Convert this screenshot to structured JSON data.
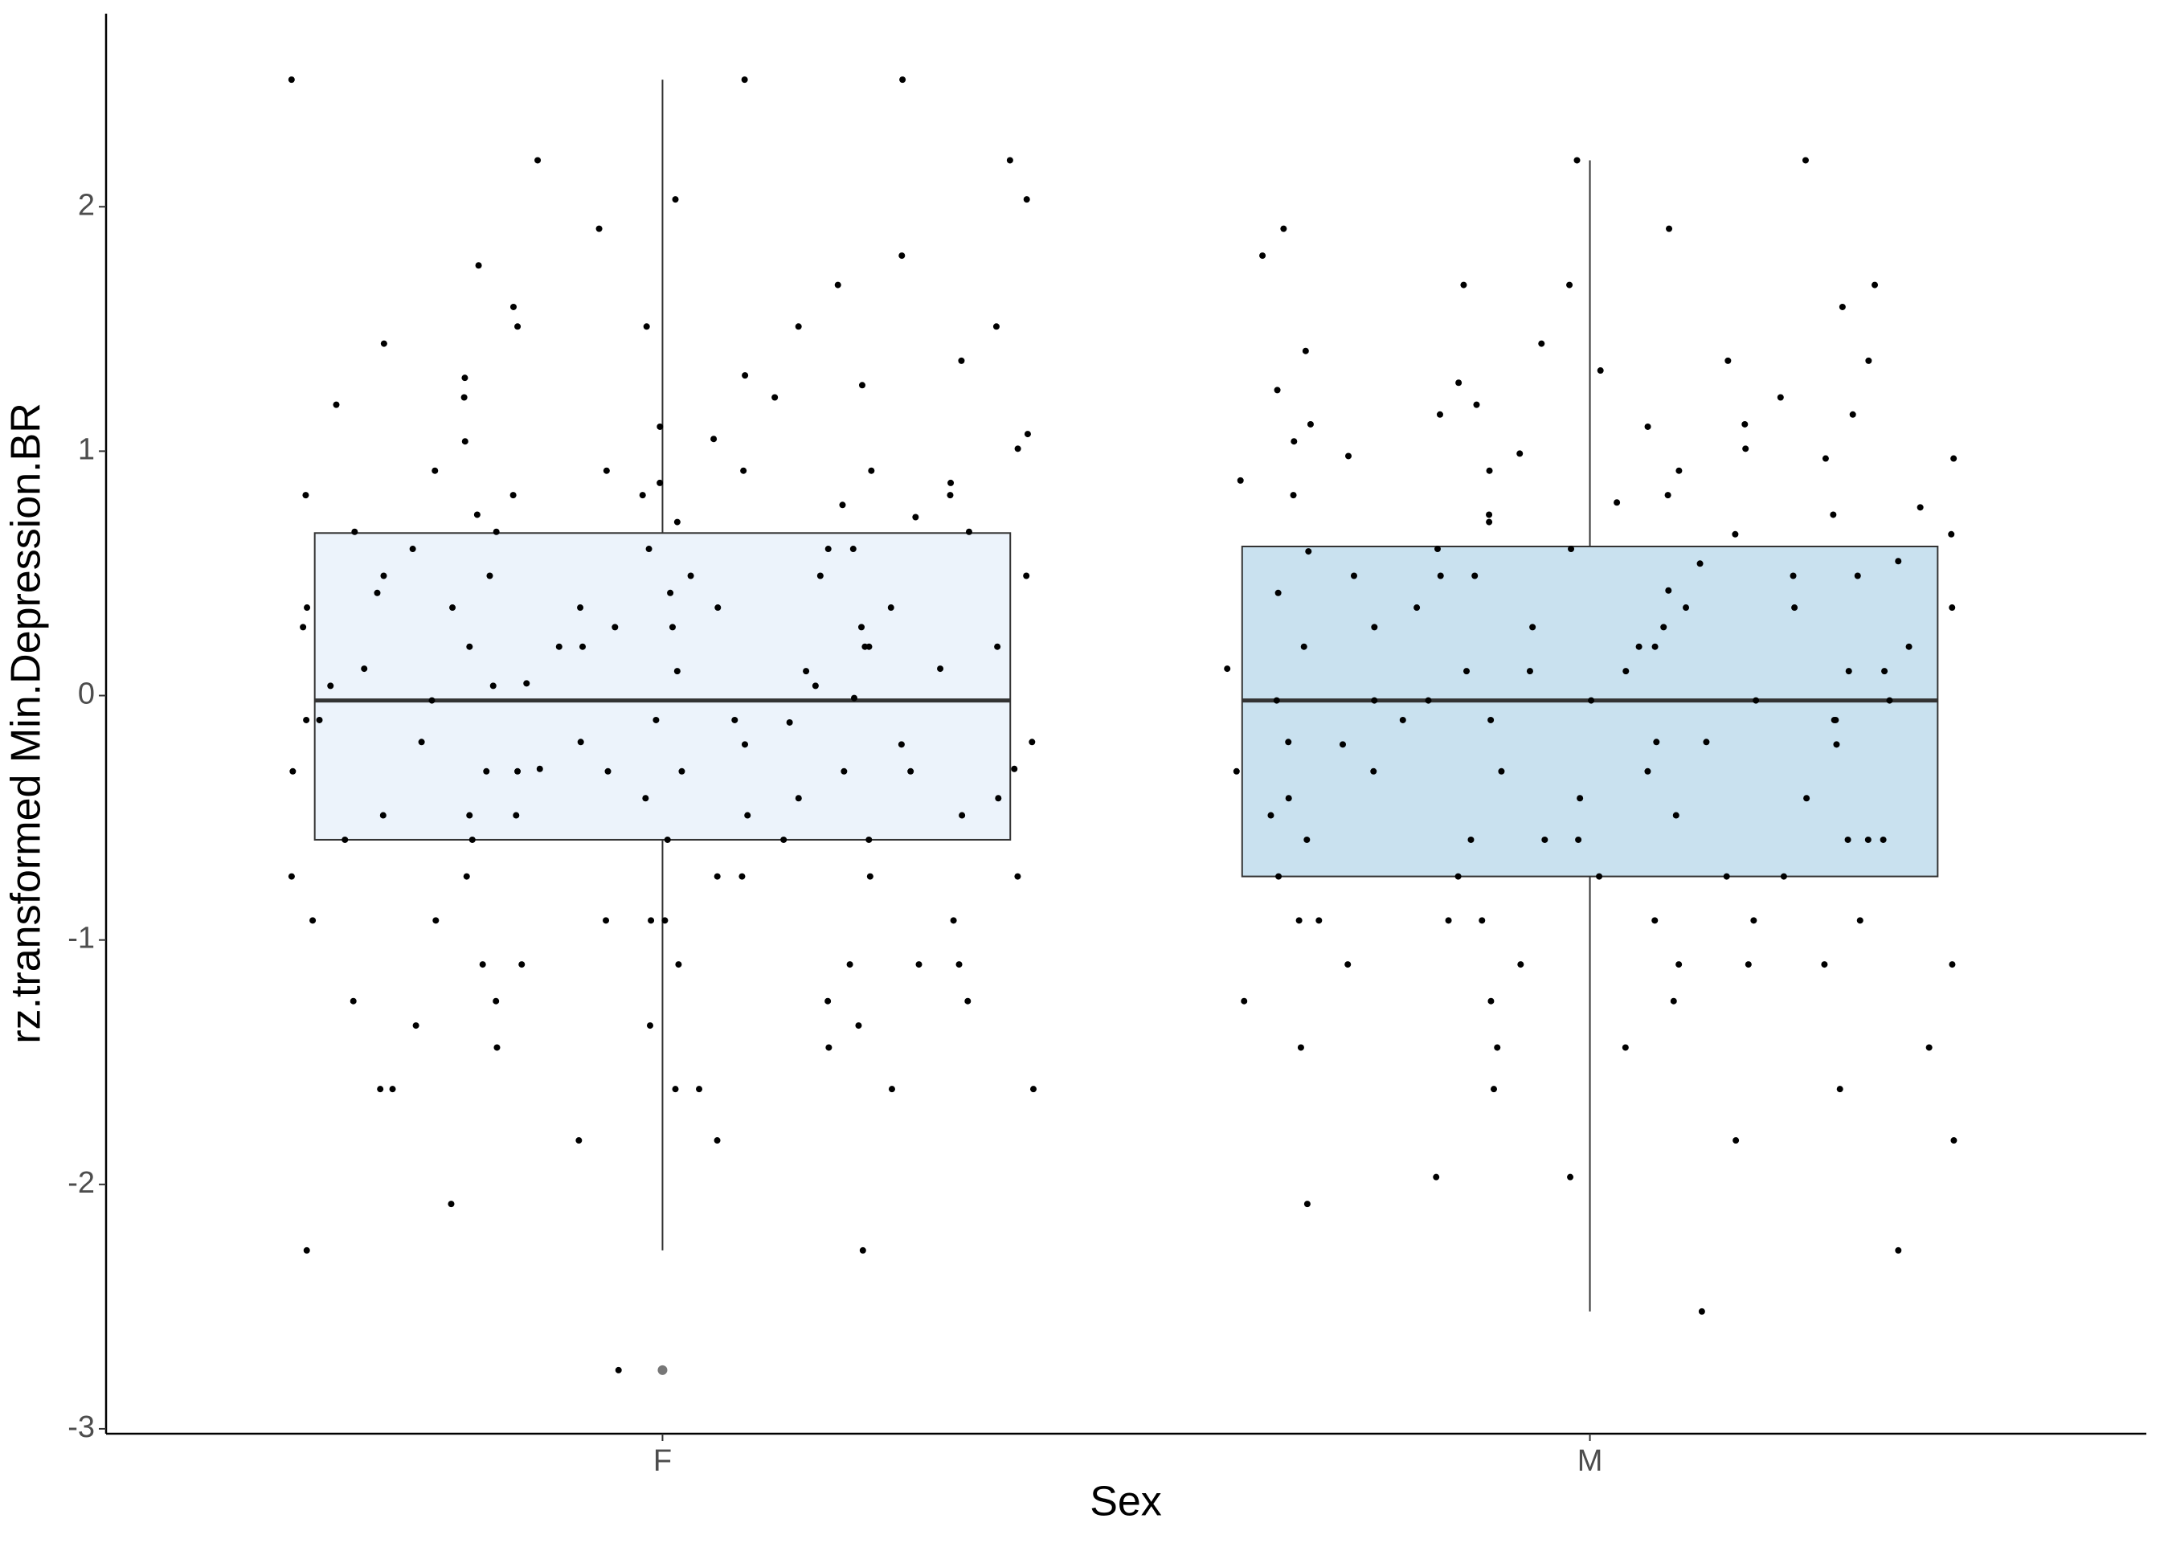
{
  "chart_data": {
    "type": "boxplot",
    "xlabel": "Sex",
    "ylabel": "rz.transformed Min.Depression.BR",
    "categories": [
      "F",
      "M"
    ],
    "box_colors": [
      "#ecf3fb",
      "#c9e1ef"
    ],
    "boxes": [
      {
        "whisker_low": -2.27,
        "q1": -0.59,
        "median": -0.02,
        "q3": 0.665,
        "whisker_high": 2.52,
        "outliers": [
          -2.76
        ]
      },
      {
        "whisker_low": -2.52,
        "q1": -0.74,
        "median": -0.02,
        "q3": 0.61,
        "whisker_high": 2.19,
        "outliers": []
      }
    ],
    "points": [
      [
        2.52,
        2.52,
        2.52,
        2.19,
        2.19,
        2.03,
        2.03,
        1.91,
        1.8,
        1.76,
        1.68,
        1.59,
        1.51,
        1.51,
        1.51,
        1.51,
        1.44,
        1.37,
        1.31,
        1.3,
        1.27,
        1.22,
        1.22,
        1.19,
        1.1,
        1.07,
        1.05,
        1.04,
        1.01,
        0.92,
        0.92,
        0.92,
        0.92,
        0.87,
        0.87,
        0.82,
        0.82,
        0.82,
        0.82,
        0.78,
        0.74,
        0.73,
        0.71,
        0.67,
        0.67,
        0.67,
        0.6,
        0.6,
        0.6,
        0.6,
        0.49,
        0.49,
        0.49,
        0.49,
        0.49,
        0.42,
        0.42,
        0.36,
        0.36,
        0.36,
        0.36,
        0.36,
        0.28,
        0.28,
        0.28,
        0.28,
        0.2,
        0.2,
        0.2,
        0.2,
        0.2,
        0.2,
        0.11,
        0.11,
        0.1,
        0.1,
        0.05,
        0.04,
        0.04,
        0.04,
        -0.01,
        -0.02,
        -0.1,
        -0.1,
        -0.1,
        -0.1,
        -0.11,
        -0.19,
        -0.19,
        -0.19,
        -0.2,
        -0.2,
        -0.3,
        -0.3,
        -0.31,
        -0.31,
        -0.31,
        -0.31,
        -0.31,
        -0.31,
        -0.31,
        -0.42,
        -0.42,
        -0.42,
        -0.49,
        -0.49,
        -0.49,
        -0.49,
        -0.49,
        -0.59,
        -0.59,
        -0.59,
        -0.59,
        -0.59,
        -0.74,
        -0.74,
        -0.74,
        -0.74,
        -0.74,
        -0.74,
        -0.92,
        -0.92,
        -0.92,
        -0.92,
        -0.92,
        -0.92,
        -1.1,
        -1.1,
        -1.1,
        -1.1,
        -1.1,
        -1.1,
        -1.25,
        -1.25,
        -1.25,
        -1.25,
        -1.35,
        -1.35,
        -1.35,
        -1.44,
        -1.44,
        -1.61,
        -1.61,
        -1.61,
        -1.61,
        -1.61,
        -1.61,
        -1.82,
        -1.82,
        -2.08,
        -2.27,
        -2.27,
        -2.76
      ],
      [
        2.19,
        2.19,
        1.91,
        1.91,
        1.8,
        1.68,
        1.68,
        1.68,
        1.59,
        1.44,
        1.41,
        1.37,
        1.37,
        1.33,
        1.28,
        1.25,
        1.22,
        1.19,
        1.15,
        1.15,
        1.11,
        1.11,
        1.1,
        1.04,
        1.01,
        0.99,
        0.98,
        0.97,
        0.97,
        0.92,
        0.92,
        0.88,
        0.82,
        0.82,
        0.79,
        0.77,
        0.74,
        0.74,
        0.71,
        0.66,
        0.66,
        0.6,
        0.6,
        0.59,
        0.55,
        0.54,
        0.49,
        0.49,
        0.49,
        0.49,
        0.49,
        0.43,
        0.42,
        0.36,
        0.36,
        0.36,
        0.36,
        0.28,
        0.28,
        0.28,
        0.2,
        0.2,
        0.2,
        0.2,
        0.11,
        0.1,
        0.1,
        0.1,
        0.1,
        0.1,
        -0.02,
        -0.02,
        -0.02,
        -0.02,
        -0.02,
        -0.02,
        -0.1,
        -0.1,
        -0.1,
        -0.1,
        -0.19,
        -0.19,
        -0.19,
        -0.2,
        -0.2,
        -0.31,
        -0.31,
        -0.31,
        -0.31,
        -0.42,
        -0.42,
        -0.42,
        -0.49,
        -0.49,
        -0.59,
        -0.59,
        -0.59,
        -0.59,
        -0.59,
        -0.59,
        -0.59,
        -0.74,
        -0.74,
        -0.74,
        -0.74,
        -0.74,
        -0.92,
        -0.92,
        -0.92,
        -0.92,
        -0.92,
        -0.92,
        -0.92,
        -1.1,
        -1.1,
        -1.1,
        -1.1,
        -1.1,
        -1.1,
        -1.25,
        -1.25,
        -1.25,
        -1.44,
        -1.44,
        -1.44,
        -1.44,
        -1.61,
        -1.61,
        -1.82,
        -1.82,
        -1.97,
        -1.97,
        -2.08,
        -2.27,
        -2.52
      ]
    ],
    "ylim": [
      -3.02,
      2.79
    ],
    "yticks": [
      -3,
      -2,
      -1,
      0,
      1,
      2
    ],
    "grid": false
  }
}
